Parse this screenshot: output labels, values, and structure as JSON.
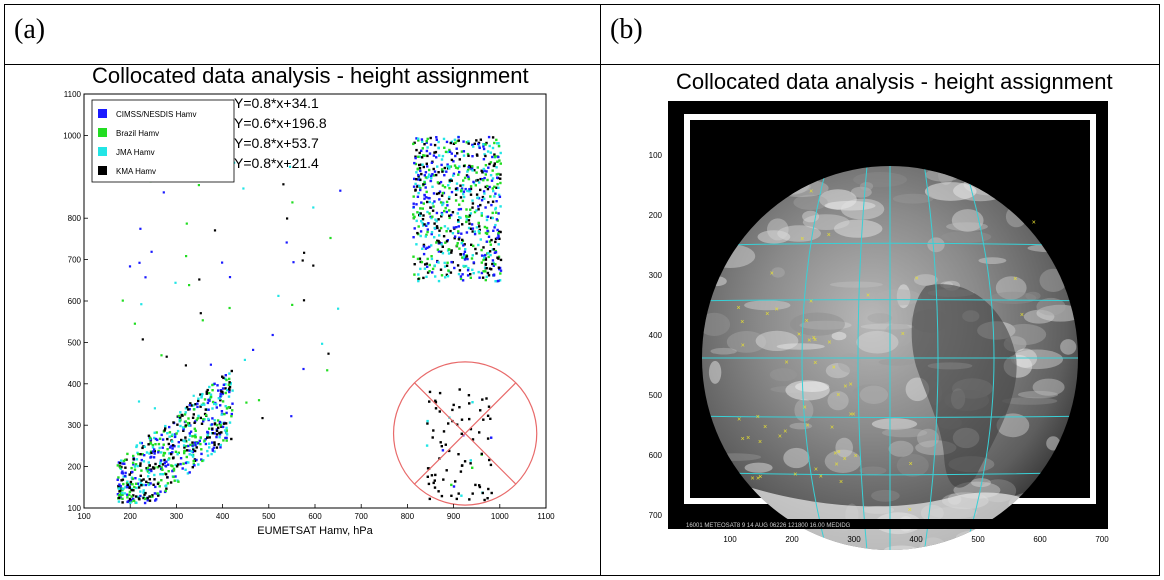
{
  "panels": {
    "a": {
      "label": "(a)",
      "title": "Collocated data analysis - height assignment"
    },
    "b": {
      "label": "(b)",
      "title": "Collocated data analysis - height assignment"
    }
  },
  "chart_data": [
    {
      "type": "scatter",
      "title": "Collocated data analysis - height assignment",
      "xlabel": "EUMETSAT Hamv, hPa",
      "ylabel": "",
      "xlim": [
        100,
        1100
      ],
      "ylim": [
        100,
        1100
      ],
      "x_ticks": [
        "100",
        "200",
        "300",
        "400",
        "500",
        "600",
        "700",
        "800",
        "900",
        "1000",
        "1100"
      ],
      "y_ticks": [
        "100",
        "200",
        "300",
        "400",
        "500",
        "600",
        "700",
        "800",
        "1000",
        "1100"
      ],
      "grid": false,
      "legend_position": "top-left",
      "equations": [
        "Y=0.8*x+34.1",
        "Y=0.6*x+196.8",
        "Y=0.8*x+53.7",
        "Y=0.8*x+21.4"
      ],
      "series": [
        {
          "name": "CIMSS/NESDIS Hamv",
          "color": "#1a1aff"
        },
        {
          "name": "Brazil Hamv",
          "color": "#22dd22"
        },
        {
          "name": "JMA Hamv",
          "color": "#22e5e5"
        },
        {
          "name": "KMA Hamv",
          "color": "#000000"
        }
      ],
      "clusters": [
        {
          "x_range": [
            170,
            420
          ],
          "y_range": [
            120,
            420
          ],
          "n": 620
        },
        {
          "x_range": [
            810,
            1000
          ],
          "y_range": [
            650,
            1000
          ],
          "n": 720
        },
        {
          "x_range": [
            840,
            980
          ],
          "y_range": [
            120,
            390
          ],
          "n": 90
        }
      ],
      "highlight_circle": {
        "center": [
          925,
          280
        ],
        "radius_x": 155,
        "color": "#e86a6a"
      }
    },
    {
      "type": "image",
      "title": "Collocated data analysis - height assignment",
      "x_ticks": [
        "100",
        "200",
        "300",
        "400",
        "500",
        "600",
        "700"
      ],
      "y_ticks": [
        "100",
        "200",
        "300",
        "400",
        "500",
        "600",
        "700"
      ],
      "footer_text": "16001 METEOSAT8  9 14 AUG 06226 121800            16.00           MEDIDG",
      "marker_color": "#e8e030",
      "grid_color": "#39d0d6"
    }
  ]
}
